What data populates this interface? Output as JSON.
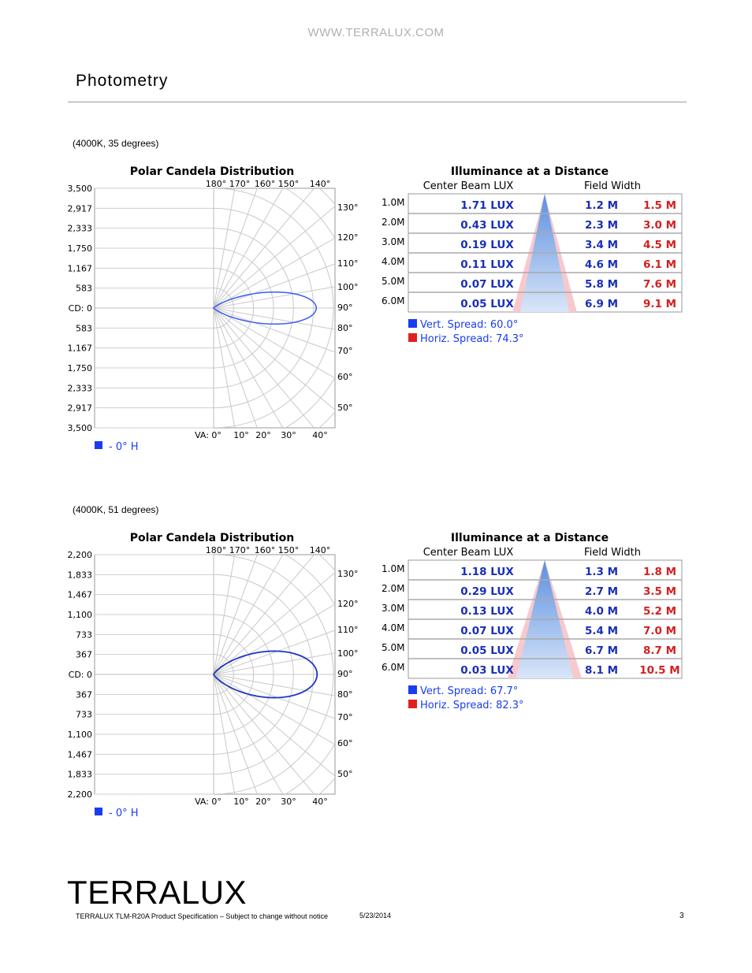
{
  "header": {
    "website": "WWW.TERRALUX.COM"
  },
  "page_title": "Photometry",
  "figures": [
    {
      "caption": "(4000K, 35 degrees)",
      "polar": {
        "title": "Polar Candela Distribution",
        "cd_labels": [
          "3,500",
          "2,917",
          "2,333",
          "1,750",
          "1,167",
          "583",
          "CD: 0",
          "583",
          "1,167",
          "1,750",
          "2,333",
          "2,917",
          "3,500"
        ],
        "top_angle_labels": [
          "180°",
          "170°",
          "160°",
          "150°",
          "140°"
        ],
        "right_angle_labels": [
          "130°",
          "120°",
          "110°",
          "100°",
          "90°",
          "80°",
          "70°",
          "60°",
          "50°"
        ],
        "bottom_angle_labels": [
          "VA: 0°",
          "10°",
          "20°",
          "30°",
          "40°"
        ],
        "legend": "- 0° H",
        "legend_color": "#1a3cf0",
        "curve_color": "#3a5cf5",
        "beam": {
          "peak_candela": 3000,
          "max_candela": 3500,
          "half_angle_deg": 17.5
        }
      },
      "illuminance": {
        "title": "Illuminance at a Distance",
        "col_center": "Center Beam LUX",
        "col_field": "Field Width",
        "distances": [
          "1.0M",
          "2.0M",
          "3.0M",
          "4.0M",
          "5.0M",
          "6.0M"
        ],
        "lux": [
          "1.71 LUX",
          "0.43 LUX",
          "0.19 LUX",
          "0.11 LUX",
          "0.07 LUX",
          "0.05 LUX"
        ],
        "vert_width": [
          "1.2 M",
          "2.3 M",
          "3.4 M",
          "4.6 M",
          "5.8 M",
          "6.9 M"
        ],
        "horiz_width": [
          "1.5 M",
          "3.0 M",
          "4.5 M",
          "6.1 M",
          "7.6 M",
          "9.1 M"
        ],
        "vert_spread": "Vert.  Spread: 60.0°",
        "horiz_spread": "Horiz. Spread: 74.3°",
        "vert_color": "#1a3cf0",
        "horiz_color": "#e02020",
        "vert_spread_deg": 60.0,
        "horiz_spread_deg": 74.3
      }
    },
    {
      "caption": "(4000K, 51 degrees)",
      "polar": {
        "title": "Polar Candela Distribution",
        "cd_labels": [
          "2,200",
          "1,833",
          "1,467",
          "1,100",
          "733",
          "367",
          "CD: 0",
          "367",
          "733",
          "1,100",
          "1,467",
          "1,833",
          "2,200"
        ],
        "top_angle_labels": [
          "180°",
          "170°",
          "160°",
          "150°",
          "140°"
        ],
        "right_angle_labels": [
          "130°",
          "120°",
          "110°",
          "100°",
          "90°",
          "80°",
          "70°",
          "60°",
          "50°"
        ],
        "bottom_angle_labels": [
          "VA: 0°",
          "10°",
          "20°",
          "30°",
          "40°"
        ],
        "legend": "- 0° H",
        "legend_color": "#1a3cf0",
        "curve_color": "#1f35c8",
        "beam": {
          "peak_candela": 1900,
          "max_candela": 2200,
          "half_angle_deg": 25.5
        }
      },
      "illuminance": {
        "title": "Illuminance at a Distance",
        "col_center": "Center Beam LUX",
        "col_field": "Field Width",
        "distances": [
          "1.0M",
          "2.0M",
          "3.0M",
          "4.0M",
          "5.0M",
          "6.0M"
        ],
        "lux": [
          "1.18 LUX",
          "0.29 LUX",
          "0.13 LUX",
          "0.07 LUX",
          "0.05 LUX",
          "0.03 LUX"
        ],
        "vert_width": [
          "1.3 M",
          "2.7 M",
          "4.0 M",
          "5.4 M",
          "6.7 M",
          "8.1 M"
        ],
        "horiz_width": [
          "1.8 M",
          "3.5 M",
          "5.2 M",
          "7.0 M",
          "8.7 M",
          "10.5 M"
        ],
        "vert_spread": "Vert.  Spread: 67.7°",
        "horiz_spread": "Horiz. Spread: 82.3°",
        "vert_color": "#1a3cf0",
        "horiz_color": "#e02020",
        "vert_spread_deg": 67.7,
        "horiz_spread_deg": 82.3
      }
    }
  ],
  "footer": {
    "logo": "TERRALUX",
    "note": "TERRALUX TLM-R20A Product Specification – Subject to change without notice",
    "date": "5/23/2014",
    "page": "3"
  }
}
